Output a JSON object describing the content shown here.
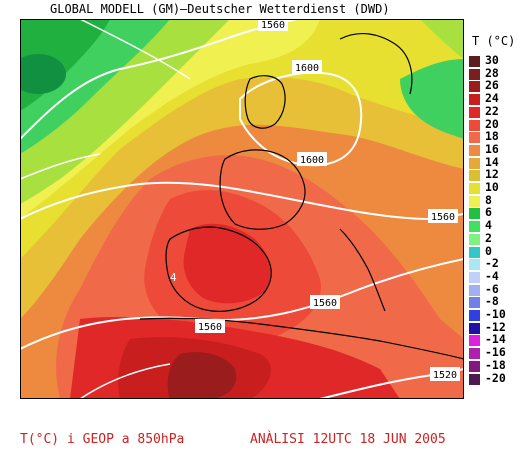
{
  "header": {
    "title": "GLOBAL MODELL (GM)—Deutscher Wetterdienst (DWD)"
  },
  "legend": {
    "title": "T (°C)",
    "items": [
      {
        "label": "30",
        "color": "#5a1e1e"
      },
      {
        "label": "28",
        "color": "#7a1f1f"
      },
      {
        "label": "26",
        "color": "#9a1c1c"
      },
      {
        "label": "24",
        "color": "#c81e1e"
      },
      {
        "label": "22",
        "color": "#e02828"
      },
      {
        "label": "20",
        "color": "#ee4a3a"
      },
      {
        "label": "18",
        "color": "#f06a4a"
      },
      {
        "label": "16",
        "color": "#ee8a40"
      },
      {
        "label": "14",
        "color": "#e8a838"
      },
      {
        "label": "12",
        "color": "#d8c030"
      },
      {
        "label": "10",
        "color": "#e8e030"
      },
      {
        "label": "8",
        "color": "#f0f050"
      },
      {
        "label": "6",
        "color": "#20c040"
      },
      {
        "label": "4",
        "color": "#40e060"
      },
      {
        "label": "2",
        "color": "#80f080"
      },
      {
        "label": "0",
        "color": "#30c8c8"
      },
      {
        "label": "-2",
        "color": "#a8e8f0"
      },
      {
        "label": "-4",
        "color": "#c0d0f8"
      },
      {
        "label": "-6",
        "color": "#a0b0f0"
      },
      {
        "label": "-8",
        "color": "#7080e8"
      },
      {
        "label": "-10",
        "color": "#3040e0"
      },
      {
        "label": "-12",
        "color": "#2010a8"
      },
      {
        "label": "-14",
        "color": "#e020e0"
      },
      {
        "label": "-16",
        "color": "#b020b0"
      },
      {
        "label": "-18",
        "color": "#801880"
      },
      {
        "label": "-20",
        "color": "#501850"
      }
    ]
  },
  "contours": {
    "labels": [
      "1560",
      "1600",
      "1600",
      "1560",
      "1560",
      "1560",
      "1520"
    ]
  },
  "map_marks": {
    "spot_label": "4"
  },
  "footer": {
    "left": "T(°C) i GEOP a 850hPa",
    "right": "ANÀLISI 12UTC 18 JUN 2005"
  }
}
